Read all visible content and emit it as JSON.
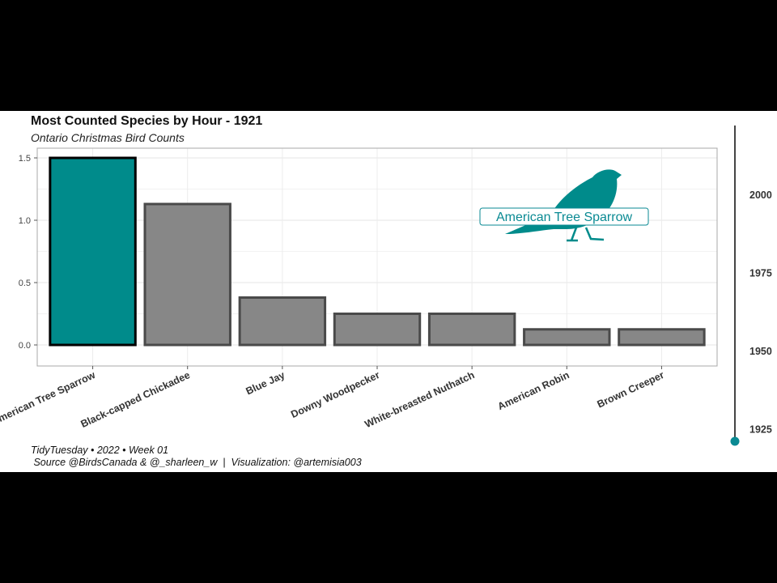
{
  "header": {
    "title": "Most Counted Species by Hour - 1921",
    "subtitle": "Ontario Christmas Bird Counts"
  },
  "caption": {
    "line1": "TidyTuesday • 2022 • Week 01",
    "line2": " Source @BirdsCanada & @_sharleen_w  |  Visualization: @artemisia003"
  },
  "colors": {
    "highlight": "#008b8b",
    "bar": "#878787",
    "bar_border": "#4a4a4a",
    "highlight_border": "#000000",
    "accent": "#0a8a93"
  },
  "annotation": {
    "label": "American Tree Sparrow",
    "icon": "bird-silhouette-icon"
  },
  "chart_data": {
    "type": "bar",
    "title": "Most Counted Species by Hour - 1921",
    "subtitle": "Ontario Christmas Bird Counts",
    "categories": [
      "American Tree Sparrow",
      "Black-capped Chickadee",
      "Blue Jay",
      "Downy Woodpecker",
      "White-breasted Nuthatch",
      "American Robin",
      "Brown Creeper"
    ],
    "values": [
      1.5,
      1.13,
      0.38,
      0.25,
      0.25,
      0.125,
      0.125
    ],
    "highlight_index": 0,
    "ylim": [
      0,
      1.5
    ],
    "yticks": [
      "0.0",
      "0.5",
      "1.0",
      "1.5"
    ],
    "ytick_values": [
      0,
      0.5,
      1.0,
      1.5
    ],
    "grid": true,
    "legend": "none"
  },
  "year_slider": {
    "ticks": [
      "1925",
      "1950",
      "1975",
      "2000"
    ],
    "tick_values": [
      1925,
      1950,
      1975,
      2000
    ],
    "range": [
      1921,
      2022
    ],
    "current": 1921
  }
}
